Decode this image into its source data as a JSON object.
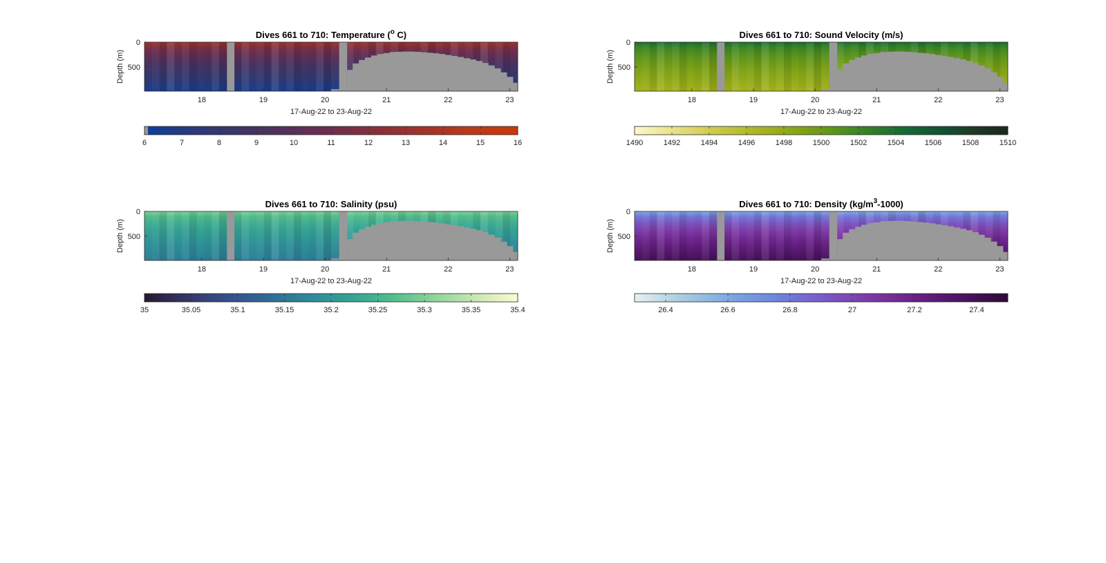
{
  "chart_data": [
    {
      "type": "heatmap",
      "variable": "Temperature",
      "title_main": "Dives 661 to 710: Temperature (",
      "title_sup": "o",
      "title_end": " C)",
      "xlabel": "17-Aug-22 to 23-Aug-22",
      "ylabel": "Depth (m)",
      "x_ticks": [
        "18",
        "19",
        "20",
        "21",
        "22",
        "23"
      ],
      "x_tick_values": [
        18,
        19,
        20,
        21,
        22,
        23
      ],
      "xlim": [
        17.07,
        23.13
      ],
      "y_ticks": [
        "0",
        "500"
      ],
      "y_tick_values": [
        0,
        500
      ],
      "ylim": [
        0,
        990
      ],
      "colorbar": {
        "ticks": [
          "6",
          "7",
          "8",
          "9",
          "10",
          "11",
          "12",
          "13",
          "14",
          "15",
          "16"
        ],
        "range": [
          6,
          16
        ],
        "colors": [
          "#0d3f9a",
          "#2a3a7a",
          "#3d3566",
          "#55305a",
          "#6e2e4c",
          "#88303a",
          "#a2342a",
          "#bb3a1a",
          "#c83a0c"
        ]
      },
      "surface_value": 13.5,
      "bottom_value": 6.5
    },
    {
      "type": "heatmap",
      "variable": "Sound Velocity",
      "title_main": "Dives 661 to 710: Sound Velocity (m/s)",
      "title_sup": "",
      "title_end": "",
      "xlabel": "17-Aug-22 to 23-Aug-22",
      "ylabel": "Depth (m)",
      "x_ticks": [
        "18",
        "19",
        "20",
        "21",
        "22",
        "23"
      ],
      "x_tick_values": [
        18,
        19,
        20,
        21,
        22,
        23
      ],
      "xlim": [
        17.07,
        23.13
      ],
      "y_ticks": [
        "0",
        "500"
      ],
      "y_tick_values": [
        0,
        500
      ],
      "ylim": [
        0,
        990
      ],
      "colorbar": {
        "ticks": [
          "1490",
          "1492",
          "1494",
          "1496",
          "1498",
          "1500",
          "1502",
          "1504",
          "1506",
          "1508",
          "1510"
        ],
        "range": [
          1490,
          1510
        ],
        "colors": [
          "#fdf8c8",
          "#ece48e",
          "#d6cf5a",
          "#bcbf34",
          "#9fb01c",
          "#7ea216",
          "#56921e",
          "#2f7f2a",
          "#136a36",
          "#145233",
          "#1d3a25",
          "#1f261c"
        ]
      },
      "surface_value": 1504,
      "bottom_value": 1497
    },
    {
      "type": "heatmap",
      "variable": "Salinity",
      "title_main": "Dives 661 to 710: Salinity (psu)",
      "title_sup": "",
      "title_end": "",
      "xlabel": "17-Aug-22 to 23-Aug-22",
      "ylabel": "Depth (m)",
      "x_ticks": [
        "18",
        "19",
        "20",
        "21",
        "22",
        "23"
      ],
      "x_tick_values": [
        18,
        19,
        20,
        21,
        22,
        23
      ],
      "xlim": [
        17.07,
        23.13
      ],
      "y_ticks": [
        "0",
        "500"
      ],
      "y_tick_values": [
        0,
        500
      ],
      "ylim": [
        0,
        990
      ],
      "colorbar": {
        "ticks": [
          "35",
          "35.05",
          "35.1",
          "35.15",
          "35.2",
          "35.25",
          "35.3",
          "35.35",
          "35.4"
        ],
        "range": [
          35,
          35.4
        ],
        "colors": [
          "#25192e",
          "#353566",
          "#35508c",
          "#2f6b95",
          "#2e8a9a",
          "#35a394",
          "#52bd8e",
          "#8fd49a",
          "#c9e8b2",
          "#fbfbd2"
        ]
      },
      "surface_value": 35.3,
      "bottom_value": 35.16
    },
    {
      "type": "heatmap",
      "variable": "Density",
      "title_main": "Dives 661 to 710: Density (kg/m",
      "title_sup": "3",
      "title_end": "-1000)",
      "xlabel": "17-Aug-22 to 23-Aug-22",
      "ylabel": "Depth (m)",
      "x_ticks": [
        "18",
        "19",
        "20",
        "21",
        "22",
        "23"
      ],
      "x_tick_values": [
        18,
        19,
        20,
        21,
        22,
        23
      ],
      "xlim": [
        17.07,
        23.13
      ],
      "y_ticks": [
        "0",
        "500"
      ],
      "y_tick_values": [
        0,
        500
      ],
      "ylim": [
        0,
        990
      ],
      "colorbar_ticks_positions": [
        26.4,
        26.6,
        26.8,
        27,
        27.2,
        27.4
      ],
      "colorbar": {
        "ticks": [
          "26.4",
          "26.6",
          "26.8",
          "27",
          "27.2",
          "27.4"
        ],
        "range": [
          26.3,
          27.5
        ],
        "colors": [
          "#e6f0f0",
          "#a9cde0",
          "#7fa8e2",
          "#6d86de",
          "#7a5cc8",
          "#7e3aa5",
          "#6a2186",
          "#4b1462",
          "#2e0b38"
        ]
      },
      "surface_value": 26.6,
      "bottom_value": 27.38
    }
  ],
  "data_gaps": [
    {
      "x_start": 18.41,
      "x_end": 18.53,
      "label": ""
    },
    {
      "x_start": 20.23,
      "x_end": 20.36,
      "label": ""
    }
  ],
  "bathymetry_mask": {
    "x": [
      20.1,
      20.23,
      20.36,
      20.45,
      20.55,
      20.65,
      20.75,
      20.85,
      20.95,
      21.05,
      21.15,
      21.25,
      21.35,
      21.45,
      21.55,
      21.65,
      21.75,
      21.85,
      21.95,
      22.05,
      22.15,
      22.25,
      22.35,
      22.45,
      22.55,
      22.65,
      22.75,
      22.85,
      22.95,
      23.05,
      23.13
    ],
    "depth_top": [
      950,
      940,
      560,
      430,
      360,
      310,
      270,
      240,
      220,
      200,
      195,
      190,
      190,
      195,
      205,
      215,
      225,
      240,
      260,
      280,
      300,
      325,
      350,
      380,
      420,
      470,
      530,
      610,
      700,
      820,
      990
    ]
  },
  "mask_color": "#999999"
}
